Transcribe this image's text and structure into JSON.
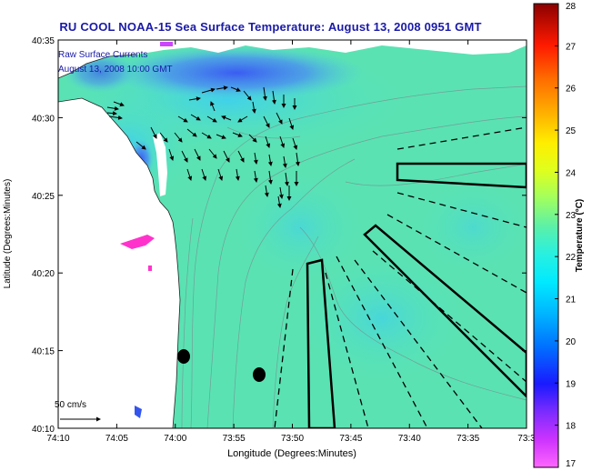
{
  "title": "RU COOL  NOAA-15  Sea Surface Temperature:  August 13, 2008 0951 GMT",
  "overlay": {
    "line1": "Raw Surface Currents",
    "line2": "August 13, 2008 10:00 GMT"
  },
  "axes": {
    "x_label": "Longitude (Degrees:Minutes)",
    "y_label": "Latitude (Degrees:Minutes)",
    "x_ticks": [
      "74:10",
      "74:05",
      "74:00",
      "73:55",
      "73:50",
      "73:45",
      "73:40",
      "73:35",
      "73:3"
    ],
    "y_ticks": [
      "40:35",
      "40:30",
      "40:25",
      "40:20",
      "40:15",
      "40:10"
    ]
  },
  "scale": {
    "label": "50 cm/s"
  },
  "colorbar": {
    "label": "Temperature (°C)",
    "min": 17,
    "max": 28,
    "ticks": [
      "28",
      "27",
      "26",
      "25",
      "24",
      "23",
      "22",
      "21",
      "20",
      "19",
      "18",
      "17"
    ],
    "colors": [
      "#ff66ff",
      "#cc33ff",
      "#8a2be2",
      "#1a1aff",
      "#0066ff",
      "#0099ff",
      "#00ccff",
      "#00ffff",
      "#33ffcc",
      "#66ff99",
      "#99ff66",
      "#ccff33",
      "#ffff00",
      "#ffcc00",
      "#ff9900",
      "#ff6600",
      "#ff3300",
      "#ff0000",
      "#cc0000",
      "#990000"
    ]
  },
  "map_colors": {
    "water": "#5ce6b4",
    "water_cool": "#3fcfe6",
    "nearshore_cold": "#2f6fe6",
    "land": "#ffffff",
    "hot_spot": "#ff33cc"
  }
}
